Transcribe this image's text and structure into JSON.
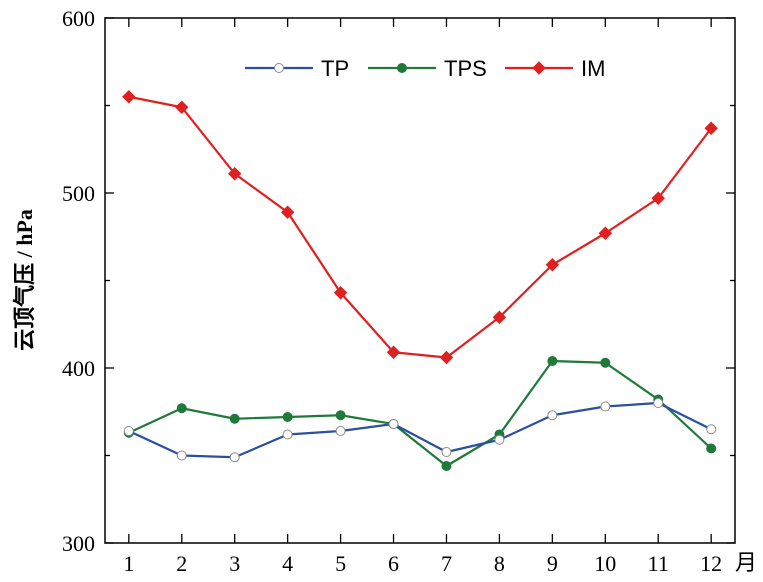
{
  "chart_data": {
    "type": "line",
    "ylabel": "云顶气压 / hPa",
    "x_unit": "月",
    "ylim": [
      300,
      600
    ],
    "yticks": [
      300,
      400,
      500,
      600
    ],
    "x": [
      1,
      2,
      3,
      4,
      5,
      6,
      7,
      8,
      9,
      10,
      11,
      12
    ],
    "grid": false,
    "legend_position": "top-center",
    "series": [
      {
        "name": "TP",
        "color": "#2a4fa3",
        "marker": "open-circle",
        "values": [
          364,
          350,
          349,
          362,
          364,
          368,
          352,
          359,
          373,
          378,
          380,
          365
        ]
      },
      {
        "name": "TPS",
        "color": "#1f7a3a",
        "marker": "filled-circle",
        "values": [
          363,
          377,
          371,
          372,
          373,
          368,
          344,
          362,
          404,
          403,
          382,
          354
        ]
      },
      {
        "name": "IM",
        "color": "#e02020",
        "marker": "diamond",
        "values": [
          555,
          549,
          511,
          489,
          443,
          409,
          406,
          429,
          459,
          477,
          497,
          537
        ]
      }
    ]
  }
}
